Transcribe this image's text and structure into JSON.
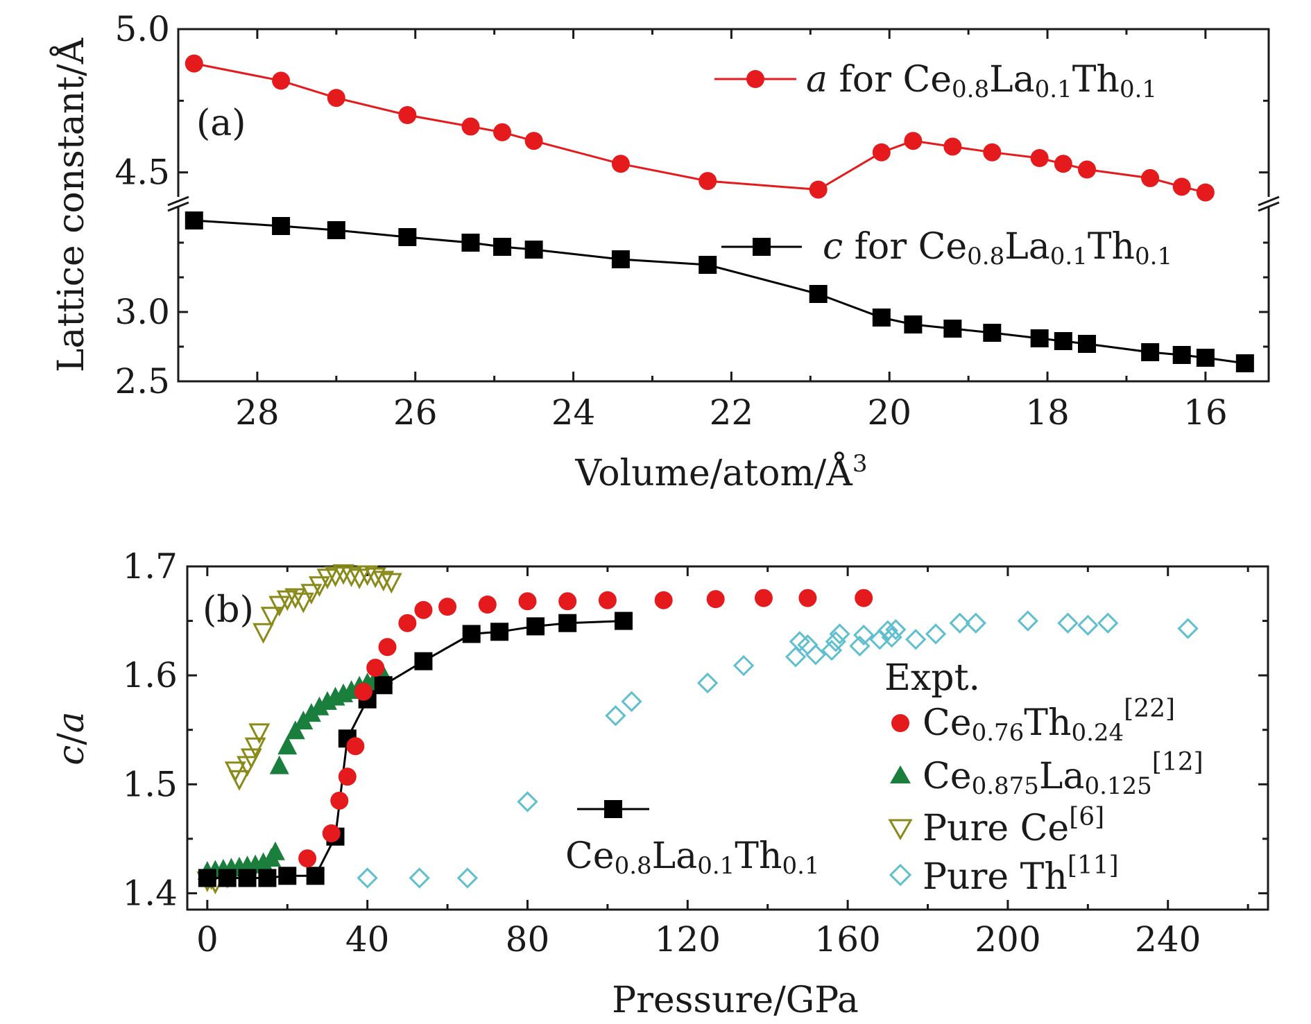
{
  "chart_data": [
    {
      "type": "line",
      "panel_label": "(a)",
      "xlabel": "Volume/atom/Å",
      "xlabel_sup": "3",
      "ylabel": "Lattice constant/Å",
      "xlim": [
        29.0,
        15.2
      ],
      "x_reversed": true,
      "x_ticks": [
        "28",
        "26",
        "24",
        "22",
        "20",
        "18",
        "16"
      ],
      "y_ticks": [
        "2.5",
        "3.0",
        "4.5",
        "5.0"
      ],
      "broken_y_axis": true,
      "ylim_lower": [
        2.5,
        3.8
      ],
      "ylim_upper": [
        4.4,
        5.0
      ],
      "grid": false,
      "legend_position": "top-right",
      "series": [
        {
          "name": "a for Ce0.8La0.1Th0.1",
          "label_italic": "a",
          "label_text": " for Ce",
          "sub1": "0.8",
          "mid1": "La",
          "sub2": "0.1",
          "mid2": "Th",
          "sub3": "0.1",
          "color": "#e41a1c",
          "marker": "circle",
          "x": [
            28.8,
            27.7,
            27.0,
            26.1,
            25.3,
            24.9,
            24.5,
            23.4,
            22.3,
            20.9,
            20.1,
            19.7,
            19.2,
            18.7,
            18.1,
            17.8,
            17.5,
            16.7,
            16.3,
            16.0
          ],
          "y": [
            4.88,
            4.82,
            4.76,
            4.7,
            4.66,
            4.64,
            4.61,
            4.53,
            4.47,
            4.44,
            4.57,
            4.61,
            4.59,
            4.57,
            4.55,
            4.53,
            4.51,
            4.48,
            4.45,
            4.43
          ]
        },
        {
          "name": "c for Ce0.8La0.1Th0.1",
          "label_italic": "c",
          "label_text": " for Ce",
          "sub1": "0.8",
          "mid1": "La",
          "sub2": "0.1",
          "mid2": "Th",
          "sub3": "0.1",
          "color": "#000000",
          "marker": "square",
          "x": [
            28.8,
            27.7,
            27.0,
            26.1,
            25.3,
            24.9,
            24.5,
            23.4,
            22.3,
            20.9,
            20.1,
            19.7,
            19.2,
            18.7,
            18.1,
            17.8,
            17.5,
            16.7,
            16.3,
            16.0,
            15.5
          ],
          "y": [
            3.66,
            3.62,
            3.59,
            3.54,
            3.5,
            3.47,
            3.45,
            3.38,
            3.34,
            3.13,
            2.96,
            2.91,
            2.88,
            2.85,
            2.81,
            2.79,
            2.77,
            2.71,
            2.69,
            2.67,
            2.63
          ]
        }
      ]
    },
    {
      "type": "scatter",
      "panel_label": "(b)",
      "xlabel": "Pressure/GPa",
      "ylabel_italic_1": "c",
      "ylabel_slash": "/",
      "ylabel_italic_2": "a",
      "xlim": [
        -5,
        265
      ],
      "ylim": [
        1.385,
        1.7
      ],
      "x_ticks": [
        "0",
        "40",
        "80",
        "120",
        "160",
        "200",
        "240"
      ],
      "y_ticks": [
        "1.4",
        "1.5",
        "1.6",
        "1.7"
      ],
      "grid": false,
      "legend_title": "Expt.",
      "legend_position": "right",
      "series": [
        {
          "name": "Ce0.76Th0.24[22]",
          "base": "Ce",
          "sub1": "0.76",
          "mid1": "Th",
          "sub2": "0.24",
          "ref": "[22]",
          "color": "#e41a1c",
          "marker": "circle",
          "x": [
            25,
            31,
            33,
            35,
            37,
            39,
            42,
            45,
            50,
            54,
            60,
            70,
            80,
            90,
            100,
            114,
            127,
            139,
            150,
            164
          ],
          "y": [
            1.432,
            1.455,
            1.485,
            1.507,
            1.535,
            1.585,
            1.607,
            1.626,
            1.648,
            1.66,
            1.663,
            1.665,
            1.668,
            1.668,
            1.669,
            1.669,
            1.67,
            1.671,
            1.671,
            1.671
          ]
        },
        {
          "name": "Ce0.875La0.125[12]",
          "base": "Ce",
          "sub1": "0.875",
          "mid1": "La",
          "sub2": "0.125",
          "ref": "[12]",
          "color": "#1a7f3c",
          "marker": "triangle-up",
          "x": [
            0,
            2,
            4,
            6,
            8,
            10,
            12,
            14,
            16,
            17,
            18,
            20,
            22,
            24,
            26,
            28,
            30,
            32,
            34,
            36,
            38,
            40,
            42,
            44
          ],
          "y": [
            1.42,
            1.421,
            1.422,
            1.423,
            1.424,
            1.425,
            1.426,
            1.428,
            1.432,
            1.438,
            1.517,
            1.535,
            1.549,
            1.558,
            1.565,
            1.571,
            1.576,
            1.58,
            1.583,
            1.586,
            1.59,
            1.593,
            1.597,
            1.6
          ]
        },
        {
          "name": "Pure Ce[6]",
          "base": "Pure Ce",
          "ref": "[6]",
          "color": "#8a8a1a",
          "marker": "triangle-down",
          "x": [
            0,
            1,
            2,
            7,
            8,
            10,
            11,
            12,
            13,
            14,
            16,
            18,
            20,
            22,
            24,
            26,
            28,
            30,
            32,
            34,
            36,
            38,
            40,
            42,
            44,
            46
          ],
          "y": [
            1.412,
            1.414,
            1.41,
            1.513,
            1.505,
            1.518,
            1.525,
            1.535,
            1.548,
            1.64,
            1.655,
            1.665,
            1.67,
            1.672,
            1.668,
            1.676,
            1.683,
            1.69,
            1.692,
            1.694,
            1.692,
            1.69,
            1.693,
            1.691,
            1.688,
            1.686
          ]
        },
        {
          "name": "Pure Th[11]",
          "base": "Pure Th",
          "ref": "[11]",
          "color": "#5fbfcf",
          "marker": "diamond-open",
          "x": [
            5,
            40,
            53,
            65,
            80,
            102,
            106,
            125,
            134,
            147,
            148,
            150,
            152,
            156,
            157,
            158,
            163,
            164,
            168,
            170,
            171,
            172,
            177,
            182,
            188,
            192,
            205,
            215,
            220,
            225,
            245
          ],
          "y": [
            1.414,
            1.414,
            1.414,
            1.414,
            1.484,
            1.563,
            1.576,
            1.593,
            1.609,
            1.617,
            1.631,
            1.628,
            1.619,
            1.623,
            1.631,
            1.638,
            1.627,
            1.637,
            1.633,
            1.641,
            1.635,
            1.642,
            1.633,
            1.638,
            1.648,
            1.648,
            1.65,
            1.648,
            1.646,
            1.648,
            1.643
          ]
        },
        {
          "name": "Ce0.8La0.1Th0.1",
          "base": "Ce",
          "sub1": "0.8",
          "mid1": "La",
          "sub2": "0.1",
          "mid2": "Th",
          "sub3": "0.1",
          "color": "#000000",
          "marker": "square",
          "connected": true,
          "x": [
            0,
            5,
            10,
            15,
            20,
            27,
            32,
            35,
            40,
            44,
            54,
            66,
            73,
            82,
            90,
            104
          ],
          "y": [
            1.414,
            1.414,
            1.414,
            1.414,
            1.416,
            1.416,
            1.452,
            1.542,
            1.578,
            1.591,
            1.613,
            1.638,
            1.64,
            1.645,
            1.648,
            1.65
          ]
        }
      ]
    }
  ]
}
